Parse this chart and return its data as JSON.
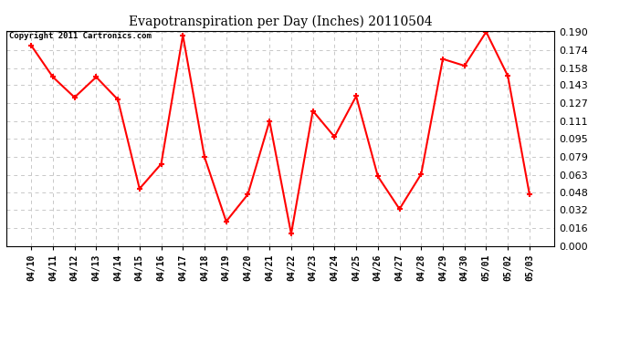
{
  "title": "Evapotranspiration per Day (Inches) 20110504",
  "copyright": "Copyright 2011 Cartronics.com",
  "dates": [
    "04/10",
    "04/11",
    "04/12",
    "04/13",
    "04/14",
    "04/15",
    "04/16",
    "04/17",
    "04/18",
    "04/19",
    "04/20",
    "04/21",
    "04/22",
    "04/23",
    "04/24",
    "04/25",
    "04/26",
    "04/27",
    "04/28",
    "04/29",
    "04/30",
    "05/01",
    "05/02",
    "05/03"
  ],
  "values": [
    0.178,
    0.15,
    0.132,
    0.15,
    0.13,
    0.051,
    0.073,
    0.187,
    0.079,
    0.022,
    0.046,
    0.111,
    0.011,
    0.12,
    0.097,
    0.133,
    0.062,
    0.033,
    0.064,
    0.166,
    0.16,
    0.19,
    0.151,
    0.046
  ],
  "line_color": "#ff0000",
  "marker_color": "#ff0000",
  "bg_color": "#ffffff",
  "grid_color": "#c8c8c8",
  "ylim_min": 0.0,
  "ylim_max": 0.19,
  "yticks": [
    0.0,
    0.016,
    0.032,
    0.048,
    0.063,
    0.079,
    0.095,
    0.111,
    0.127,
    0.143,
    0.158,
    0.174,
    0.19
  ]
}
